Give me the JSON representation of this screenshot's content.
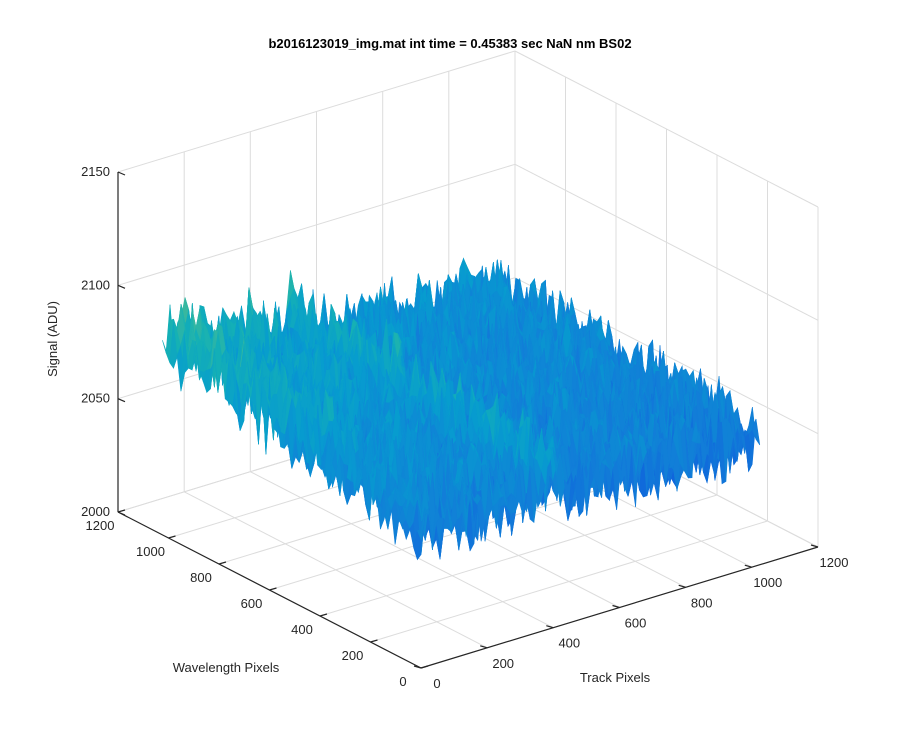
{
  "chart_data": {
    "type": "surface",
    "title": "b2016123019_img.mat int time = 0.45383 sec  NaN nm BS02",
    "xlabel": "Track Pixels",
    "ylabel": "Wavelength Pixels",
    "zlabel": "Signal (ADU)",
    "xlim": [
      0,
      1200
    ],
    "ylim": [
      0,
      1200
    ],
    "zlim": [
      2000,
      2150
    ],
    "xticks": [
      0,
      200,
      400,
      600,
      800,
      1000,
      1200
    ],
    "yticks": [
      0,
      200,
      400,
      600,
      800,
      1000,
      1200
    ],
    "zticks": [
      2000,
      2050,
      2100,
      2150
    ],
    "grid": true,
    "colormap": "parula",
    "surface_range": {
      "track_pixels": [
        0,
        1024
      ],
      "wavelength_pixels": [
        0,
        1024
      ],
      "signal_baseline_adu": 2060,
      "signal_min_adu": 2025,
      "signal_max_adu": 2135
    }
  }
}
